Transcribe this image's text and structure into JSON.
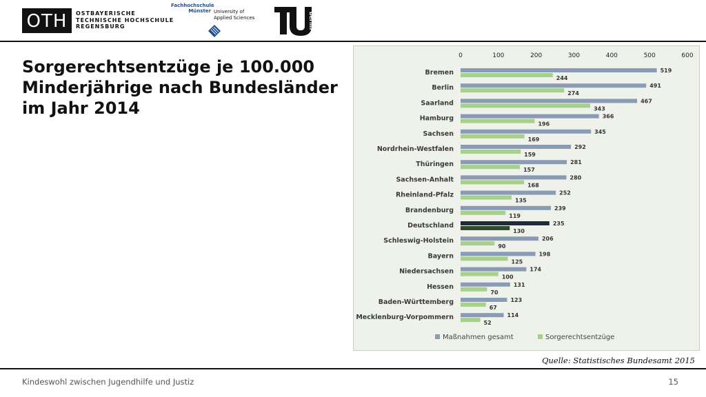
{
  "header": {
    "oth_logo_text": "OTH",
    "oth_name_lines": [
      "OSTBAYERISCHE",
      "TECHNISCHE HOCHSCHULE",
      "REGENSBURG"
    ],
    "fh_top_lines": [
      "Fachhochschule",
      "Münster"
    ],
    "fh_right_lines": [
      "University of",
      "Applied Sciences"
    ],
    "tu_logo_text": "berlin"
  },
  "title_lines": [
    "Sorgerechtsentzüge je 100.000",
    "Minderjährige nach Bundesländer",
    "im Jahr 2014"
  ],
  "source": "Quelle: Statistisches Bundesamt 2015",
  "footer": {
    "text": "Kindeswohl zwischen Jugendhilfe und Justiz",
    "page": "15"
  },
  "colors": {
    "massnahmen": "#8b9ab5",
    "sorgerecht": "#a6d08c",
    "highlight_massnahmen": "#1f2a36",
    "highlight_sorgerecht": "#2f4a2a"
  },
  "chart_data": {
    "type": "bar",
    "orientation": "horizontal",
    "categories": [
      "Bremen",
      "Berlin",
      "Saarland",
      "Hamburg",
      "Sachsen",
      "Nordrhein-Westfalen",
      "Thüringen",
      "Sachsen-Anhalt",
      "Rheinland-Pfalz",
      "Brandenburg",
      "Deutschland",
      "Schleswig-Holstein",
      "Bayern",
      "Niedersachsen",
      "Hessen",
      "Baden-Württemberg",
      "Mecklenburg-Vorpommern"
    ],
    "series": [
      {
        "name": "Maßnahmen gesamt",
        "values": [
          519,
          491,
          467,
          366,
          345,
          292,
          281,
          280,
          252,
          239,
          235,
          206,
          198,
          174,
          131,
          123,
          114
        ]
      },
      {
        "name": "Sorgerechtsentzüge",
        "values": [
          244,
          274,
          343,
          196,
          169,
          159,
          157,
          168,
          135,
          119,
          130,
          90,
          125,
          100,
          70,
          67,
          52
        ]
      }
    ],
    "highlight_category": "Deutschland",
    "xlim": [
      0,
      600
    ],
    "xticks": [
      0,
      100,
      200,
      300,
      400,
      500,
      600
    ],
    "xaxis_position": "top",
    "grid": false,
    "data_labels": true,
    "legend_position": "bottom"
  }
}
